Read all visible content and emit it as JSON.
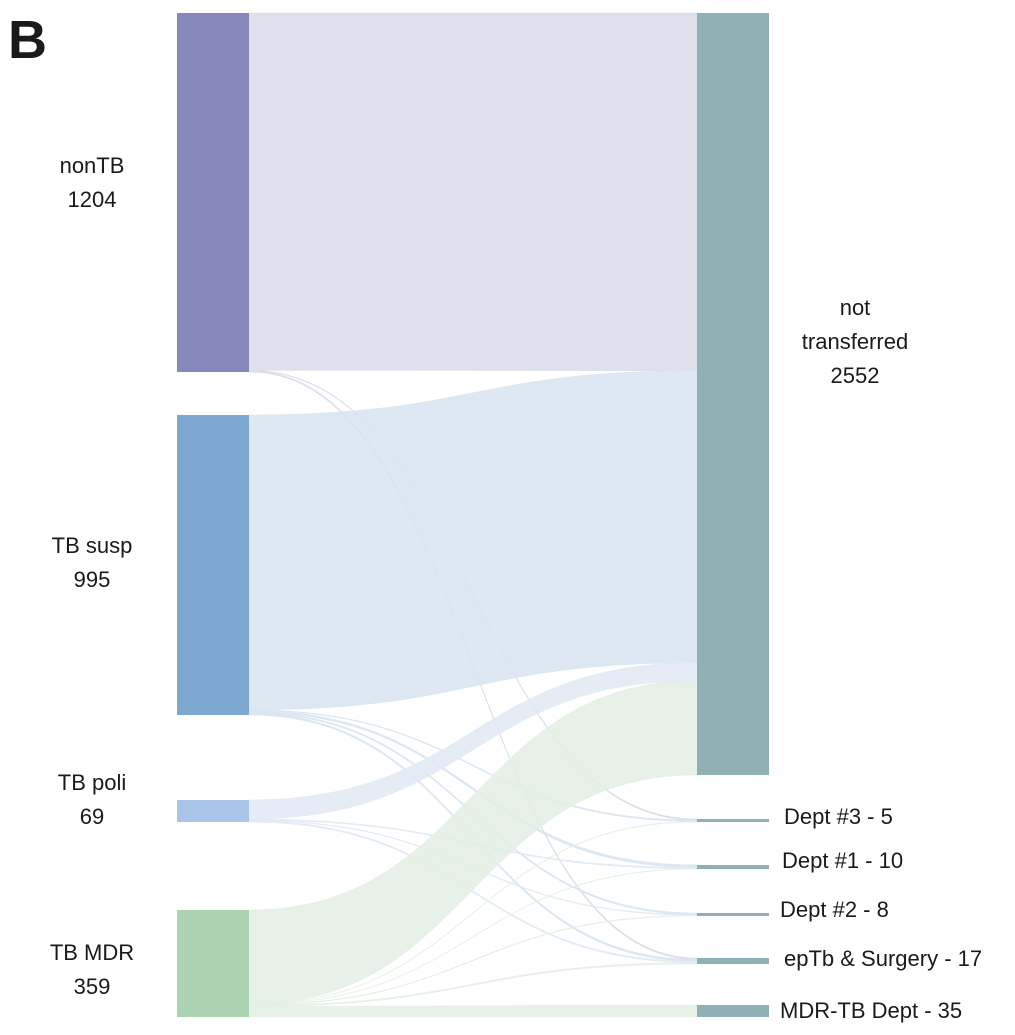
{
  "panel_label": "B",
  "sources": [
    {
      "id": "nonTB",
      "name": "nonTB",
      "count": "1204",
      "color": "#8789bc"
    },
    {
      "id": "TBsusp",
      "name": "TB susp",
      "count": "995",
      "color": "#7ca8cf"
    },
    {
      "id": "TBpoli",
      "name": "TB poli",
      "count": "69",
      "color": "#a9c6ea"
    },
    {
      "id": "TBMDR",
      "name": "TB MDR",
      "count": "359",
      "color": "#acd4b2"
    }
  ],
  "targets": [
    {
      "id": "not",
      "lines": [
        "not",
        "transferred",
        "2552"
      ],
      "color": "#8fb1b6"
    },
    {
      "id": "d3",
      "lines": [
        "Dept #3 - 5"
      ],
      "color": "#8fb1b6"
    },
    {
      "id": "d1",
      "lines": [
        "Dept #1 - 10"
      ],
      "color": "#8fb1b6"
    },
    {
      "id": "d2",
      "lines": [
        "Dept #2 - 8"
      ],
      "color": "#8fb1b6"
    },
    {
      "id": "ep",
      "lines": [
        "epTb & Surgery - 17"
      ],
      "color": "#8fb1b6"
    },
    {
      "id": "mdr",
      "lines": [
        "MDR-TB Dept - 35"
      ],
      "color": "#8fb1b6"
    }
  ],
  "link_colors": {
    "nonTB": "#d9dbe9",
    "TBsusp": "#d7e4f0",
    "TBpoli": "#e0e9f5",
    "TBMDR": "#e3efe4"
  },
  "links": [
    {
      "source": "nonTB",
      "target": "not",
      "value": 1198
    },
    {
      "source": "nonTB",
      "target": "d3",
      "value": 2
    },
    {
      "source": "nonTB",
      "target": "ep",
      "value": 4
    },
    {
      "source": "TBsusp",
      "target": "not",
      "value": 978
    },
    {
      "source": "TBsusp",
      "target": "d3",
      "value": 2
    },
    {
      "source": "TBsusp",
      "target": "d1",
      "value": 6
    },
    {
      "source": "TBsusp",
      "target": "d2",
      "value": 4
    },
    {
      "source": "TBsusp",
      "target": "ep",
      "value": 5
    },
    {
      "source": "TBpoli",
      "target": "not",
      "value": 60
    },
    {
      "source": "TBpoli",
      "target": "d1",
      "value": 3
    },
    {
      "source": "TBpoli",
      "target": "d2",
      "value": 2
    },
    {
      "source": "TBpoli",
      "target": "ep",
      "value": 4
    },
    {
      "source": "TBMDR",
      "target": "not",
      "value": 316
    },
    {
      "source": "TBMDR",
      "target": "d3",
      "value": 1
    },
    {
      "source": "TBMDR",
      "target": "d1",
      "value": 1
    },
    {
      "source": "TBMDR",
      "target": "d2",
      "value": 2
    },
    {
      "source": "TBMDR",
      "target": "ep",
      "value": 4
    },
    {
      "source": "TBMDR",
      "target": "mdr",
      "value": 35
    }
  ]
}
